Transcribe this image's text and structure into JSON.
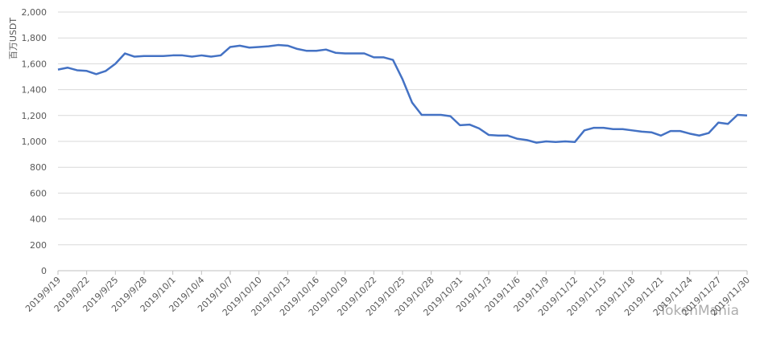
{
  "chart_data": {
    "type": "line",
    "y_label": "百万USDT",
    "annotation": "TokenMania",
    "categories": [
      "2019/9/19",
      null,
      null,
      "2019/9/22",
      null,
      null,
      "2019/9/25",
      null,
      null,
      "2019/9/28",
      null,
      null,
      "2019/10/1",
      null,
      null,
      "2019/10/4",
      null,
      null,
      "2019/10/7",
      null,
      null,
      "2019/10/10",
      null,
      null,
      "2019/10/13",
      null,
      null,
      "2019/10/16",
      null,
      null,
      "2019/10/19",
      null,
      null,
      "2019/10/22",
      null,
      null,
      "2019/10/25",
      null,
      null,
      "2019/10/28",
      null,
      null,
      "2019/10/31",
      null,
      null,
      "2019/11/3",
      null,
      null,
      "2019/11/6",
      null,
      null,
      "2019/11/9",
      null,
      null,
      "2019/11/12",
      null,
      null,
      "2019/11/15",
      null,
      null,
      "2019/11/18",
      null,
      null,
      "2019/11/21",
      null,
      null,
      "2019/11/24",
      null,
      null,
      "2019/11/27",
      null,
      null,
      "2019/11/30"
    ],
    "series": [
      {
        "color": "#4472c4",
        "values": [
          1555,
          1570,
          1550,
          1545,
          1520,
          1545,
          1600,
          1680,
          1655,
          1660,
          1660,
          1660,
          1665,
          1665,
          1655,
          1665,
          1655,
          1665,
          1730,
          1740,
          1725,
          1730,
          1735,
          1745,
          1740,
          1715,
          1700,
          1700,
          1710,
          1685,
          1680,
          1680,
          1680,
          1650,
          1650,
          1630,
          1480,
          1300,
          1205,
          1205,
          1205,
          1195,
          1125,
          1130,
          1100,
          1050,
          1045,
          1045,
          1020,
          1010,
          990,
          1000,
          995,
          1000,
          995,
          1085,
          1105,
          1105,
          1095,
          1095,
          1085,
          1075,
          1070,
          1045,
          1080,
          1080,
          1060,
          1045,
          1065,
          1145,
          1135,
          1205,
          1200
        ]
      }
    ],
    "ylim": [
      0,
      2000
    ],
    "yticks": [
      0,
      {
        "value": 200,
        "label": "200"
      },
      {
        "value": 400,
        "label": "400"
      },
      {
        "value": 600,
        "label": "600"
      },
      {
        "value": 800,
        "label": "800"
      },
      {
        "value": 1000,
        "label": "1,000"
      },
      {
        "value": 1200,
        "label": "1,200"
      },
      {
        "value": 1400,
        "label": "1,400"
      },
      {
        "value": 1600,
        "label": "1,600"
      },
      {
        "value": 1800,
        "label": "1,800"
      },
      {
        "value": 2000,
        "label": "2,000"
      }
    ],
    "grid": true
  }
}
